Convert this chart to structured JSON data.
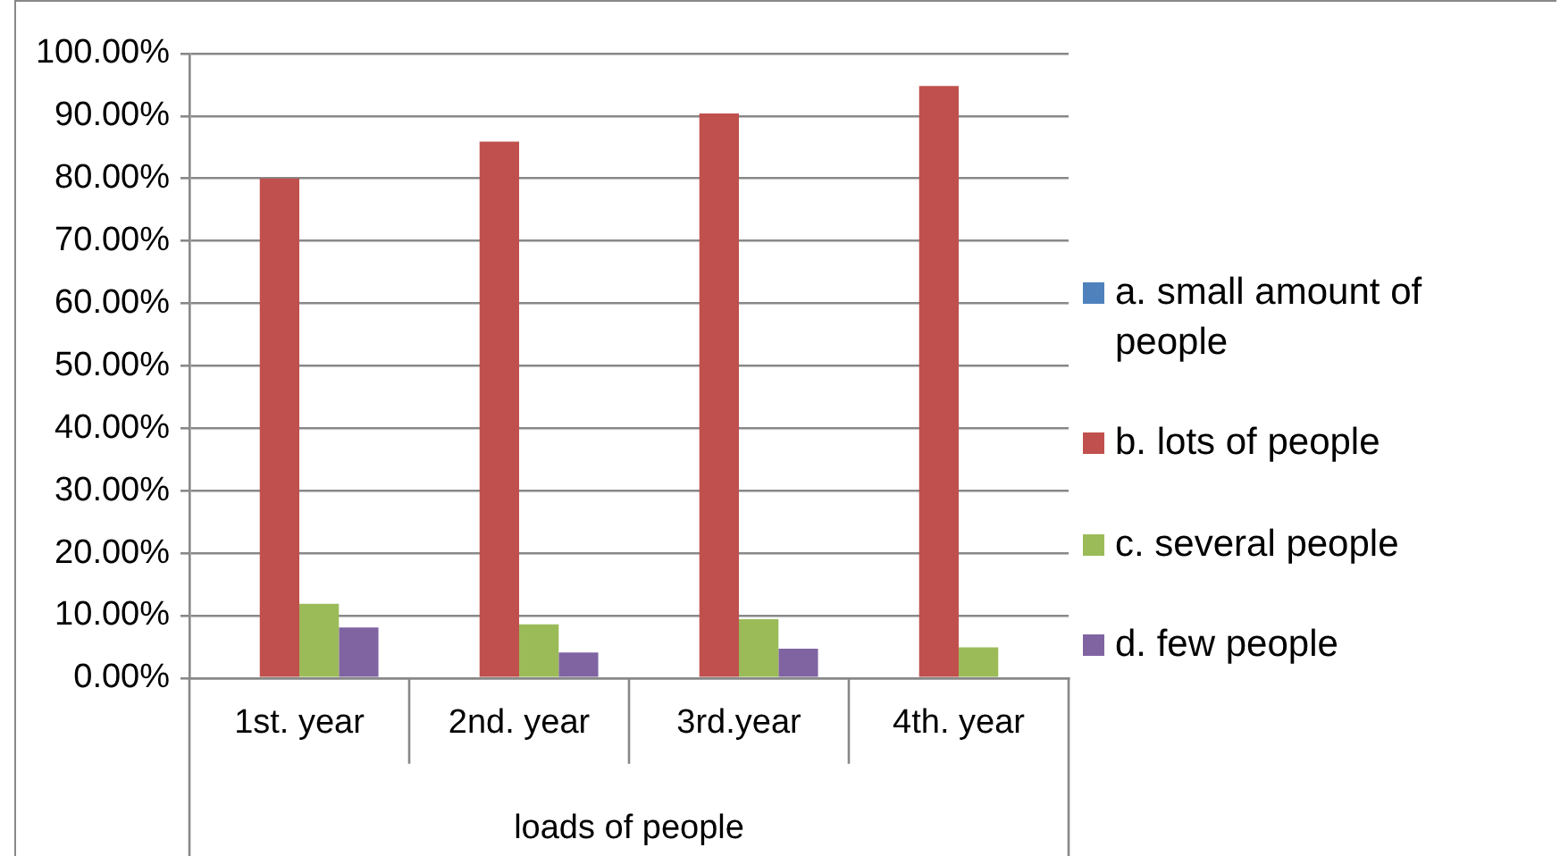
{
  "chart_data": {
    "type": "bar",
    "xlabel": "loads of people",
    "categories": [
      "1st. year",
      "2nd. year",
      "3rd.year",
      "4th. year"
    ],
    "series": [
      {
        "name": "a. small amount of people",
        "color": "#4f81bd",
        "values": [
          0,
          0,
          0,
          0
        ]
      },
      {
        "name": "b. lots of people",
        "color": "#c0504d",
        "values": [
          80.0,
          85.9,
          90.4,
          94.8
        ]
      },
      {
        "name": "c. several people",
        "color": "#9bbb59",
        "values": [
          11.9,
          8.6,
          9.4,
          4.9
        ]
      },
      {
        "name": "d. few people",
        "color": "#8064a2",
        "values": [
          8.1,
          4.1,
          4.7,
          0
        ]
      }
    ],
    "ylim": [
      0,
      100
    ],
    "yticks": [
      {
        "value": 0,
        "label": "0.00%"
      },
      {
        "value": 10,
        "label": "10.00%"
      },
      {
        "value": 20,
        "label": "20.00%"
      },
      {
        "value": 30,
        "label": "30.00%"
      },
      {
        "value": 40,
        "label": "40.00%"
      },
      {
        "value": 50,
        "label": "50.00%"
      },
      {
        "value": 60,
        "label": "60.00%"
      },
      {
        "value": 70,
        "label": "70.00%"
      },
      {
        "value": 80,
        "label": "80.00%"
      },
      {
        "value": 90,
        "label": "90.00%"
      },
      {
        "value": 100,
        "label": "100.00%"
      }
    ],
    "grid": "y",
    "legend": "right"
  }
}
